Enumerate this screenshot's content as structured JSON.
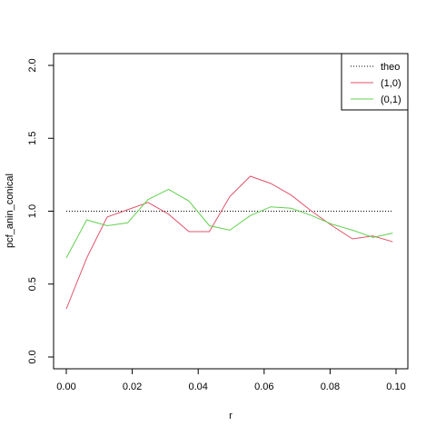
{
  "chart_data": {
    "type": "line",
    "xlabel": "r",
    "ylabel": "pcf_anin_conical",
    "xlim": [
      0.0,
      0.1
    ],
    "ylim": [
      0.0,
      2.0
    ],
    "x_ticks": [
      0.0,
      0.02,
      0.04,
      0.06,
      0.08,
      0.1
    ],
    "x_tick_labels": [
      "0.00",
      "0.02",
      "0.04",
      "0.06",
      "0.08",
      "0.10"
    ],
    "y_ticks": [
      0.0,
      0.5,
      1.0,
      1.5,
      2.0
    ],
    "y_tick_labels": [
      "0.0",
      "0.5",
      "1.0",
      "1.5",
      "2.0"
    ],
    "grid": false,
    "legend_position": "top-right",
    "series": [
      {
        "name": "theo",
        "color": "#000000",
        "style": "dotted",
        "x": [
          0.0,
          0.099
        ],
        "y": [
          1.0,
          1.0
        ]
      },
      {
        "name": "(1,0)",
        "color": "#DF536B",
        "style": "solid",
        "x": [
          0.0,
          0.0062,
          0.0124,
          0.0186,
          0.0248,
          0.031,
          0.0372,
          0.0434,
          0.0496,
          0.0558,
          0.062,
          0.0682,
          0.0744,
          0.0806,
          0.0868,
          0.093,
          0.099
        ],
        "y": [
          0.33,
          0.68,
          0.96,
          1.01,
          1.06,
          0.98,
          0.86,
          0.86,
          1.1,
          1.24,
          1.19,
          1.11,
          1.0,
          0.9,
          0.81,
          0.83,
          0.79
        ]
      },
      {
        "name": "(0,1)",
        "color": "#61D04F",
        "style": "solid",
        "x": [
          0.0,
          0.0062,
          0.0124,
          0.0186,
          0.0248,
          0.031,
          0.0372,
          0.0434,
          0.0496,
          0.0558,
          0.062,
          0.0682,
          0.0744,
          0.0806,
          0.0868,
          0.093,
          0.099
        ],
        "y": [
          0.68,
          0.94,
          0.9,
          0.92,
          1.08,
          1.15,
          1.07,
          0.9,
          0.87,
          0.97,
          1.03,
          1.02,
          0.97,
          0.91,
          0.87,
          0.82,
          0.85
        ]
      }
    ]
  }
}
